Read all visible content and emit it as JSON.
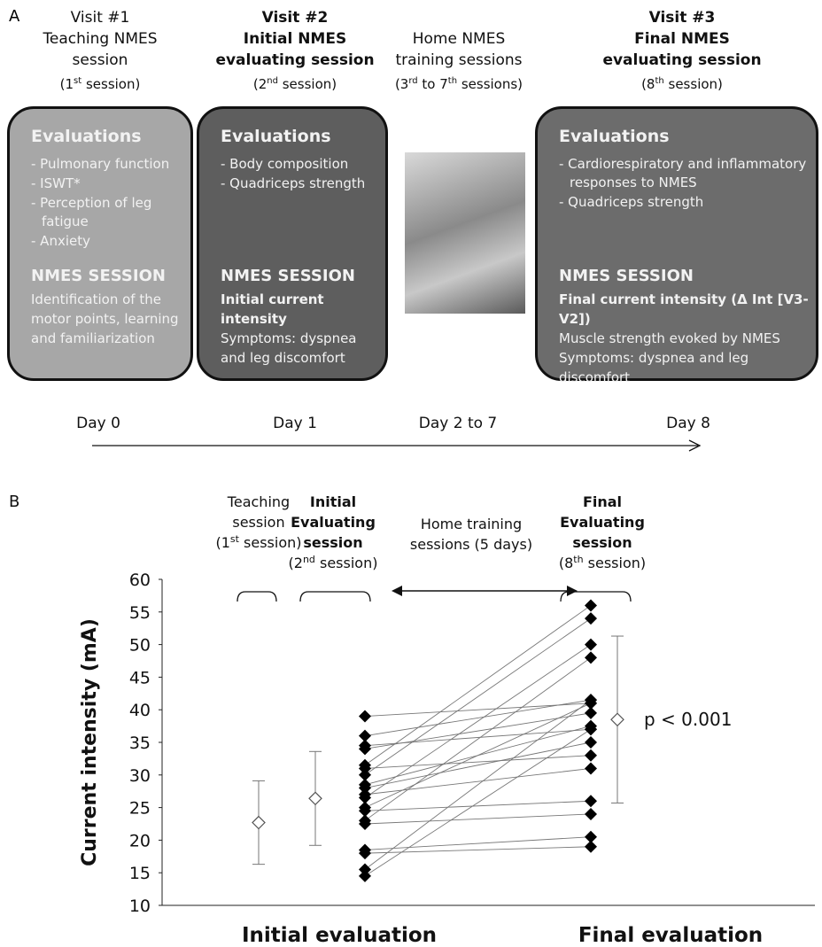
{
  "panel_a": {
    "label": "A",
    "headers": [
      {
        "lines": [
          "Visit #1",
          "Teaching NMES",
          "session"
        ],
        "session": [
          "(1",
          "st",
          " session)"
        ]
      },
      {
        "lines": [
          "Visit #2",
          "Initial NMES",
          "evaluating session"
        ],
        "session": [
          "(2",
          "nd",
          " session)"
        ]
      },
      {
        "lines": [
          "Home NMES",
          "training sessions"
        ],
        "session": [
          "(3",
          "rd",
          " to 7",
          "th",
          " sessions)"
        ]
      },
      {
        "lines": [
          "Visit #3",
          "Final NMES",
          "evaluating session"
        ],
        "session": [
          "(8",
          "th",
          " session)"
        ]
      }
    ],
    "boxes": [
      {
        "heading": "Evaluations",
        "items": [
          "- Pulmonary function",
          "- ISWT*",
          "- Perception of leg fatigue",
          "- Anxiety"
        ],
        "session_heading": "NMES SESSION",
        "session_lines": [
          "Identification of the motor points, learning  and familiarization"
        ]
      },
      {
        "heading": "Evaluations",
        "items": [
          "- Body composition",
          "- Quadriceps strength"
        ],
        "session_heading": "NMES SESSION",
        "session_bold": "Initial current intensity",
        "session_lines": [
          "Symptoms: dyspnea and leg discomfort"
        ]
      },
      {
        "heading": "Evaluations",
        "items": [
          "- Cardiorespiratory and inflammatory responses to NMES",
          "- Quadriceps strength"
        ],
        "session_heading": "NMES SESSION",
        "session_bold": "Final current intensity (Δ Int [V3-V2])",
        "session_lines": [
          "Muscle strength evoked by NMES",
          "Symptoms: dyspnea and leg discomfort"
        ]
      }
    ],
    "timeline": [
      "Day 0",
      "Day 1",
      "Day 2 to 7",
      "Day 8"
    ]
  },
  "chart_data": {
    "type": "paired-dot",
    "label": "B",
    "session_labels": [
      {
        "lines": [
          "Teaching",
          "session"
        ],
        "session": [
          "(1",
          "st",
          " session)"
        ]
      },
      {
        "lines": [
          "Initial",
          "Evaluating",
          "session"
        ],
        "session": [
          "(2",
          "nd",
          " session)"
        ]
      },
      {
        "lines": [
          "Home training",
          "sessions  (5 days)"
        ]
      },
      {
        "lines": [
          "Final",
          "Evaluating",
          "session"
        ],
        "session": [
          "(8",
          "th",
          " session)"
        ]
      }
    ],
    "y_label": "Current intensity (mA)",
    "categories": [
      "Initial evaluation",
      "Final evaluation"
    ],
    "ylim": [
      10,
      60
    ],
    "yticks": [
      10,
      15,
      20,
      25,
      30,
      35,
      40,
      45,
      50,
      55,
      60
    ],
    "summary": {
      "values": [
        22.7,
        26.4,
        38.5
      ],
      "errors": [
        6.4,
        7.2,
        12.8
      ]
    },
    "initial": [
      39,
      36,
      34.5,
      34,
      31.5,
      31,
      30,
      28.5,
      28,
      27,
      26.5,
      25,
      24.5,
      23,
      22.5,
      18.5,
      18,
      15.5,
      14.5
    ],
    "final": [
      41,
      41.5,
      37,
      39.5,
      56,
      33,
      54,
      37.5,
      35,
      31,
      50,
      41,
      26,
      48,
      24,
      20.5,
      19,
      41.5,
      37
    ],
    "annotation": "p < 0.001"
  }
}
